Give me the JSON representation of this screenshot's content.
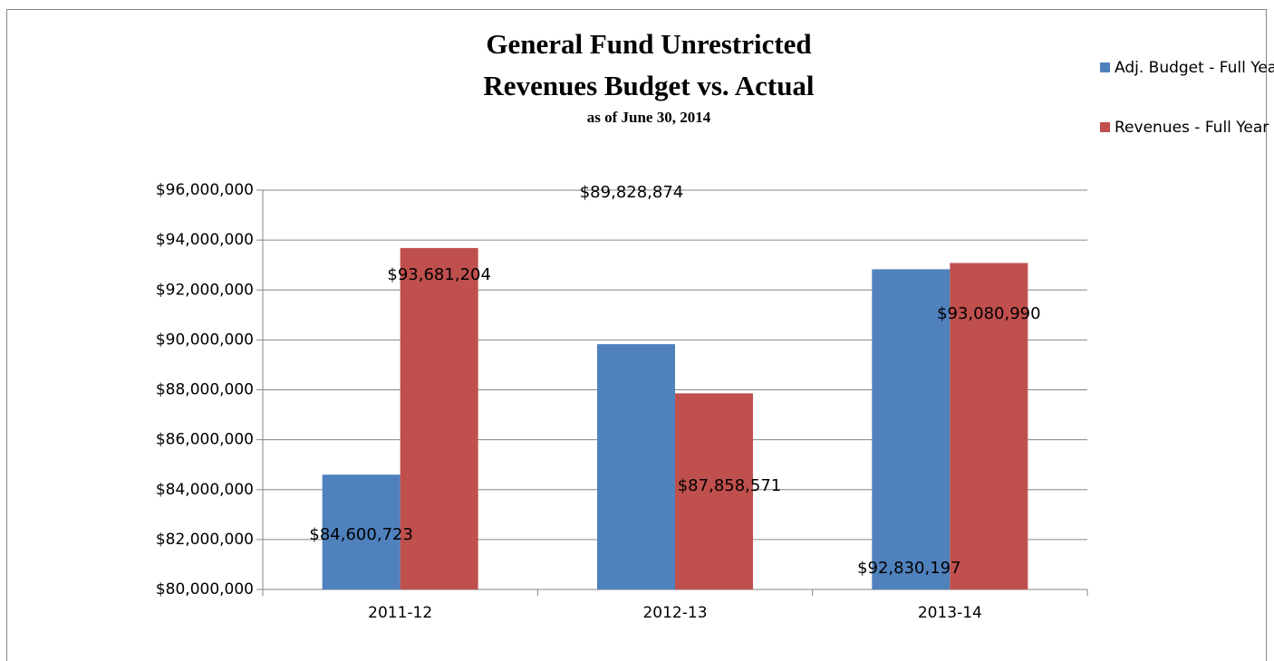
{
  "chart_data": {
    "type": "bar",
    "title": [
      "General Fund Unrestricted",
      "Revenues Budget vs. Actual"
    ],
    "subtitle": "as of June 30, 2014",
    "categories": [
      "2011-12",
      "2012-13",
      "2013-14"
    ],
    "series": [
      {
        "name": "Adj. Budget - Full Year",
        "color": "#4f81bd",
        "values": [
          84600723,
          89828874,
          92830197
        ],
        "value_labels": [
          "$84,600,723",
          "$89,828,874",
          "$92,830,197"
        ]
      },
      {
        "name": "Revenues - Full Year",
        "color": "#c0504d",
        "values": [
          93681204,
          87858571,
          93080990
        ],
        "value_labels": [
          "$93,681,204",
          "$87,858,571",
          "$93,080,990"
        ]
      }
    ],
    "ylim": [
      80000000,
      96000000
    ],
    "yticks": [
      {
        "value": 80000000,
        "label": "$80,000,000"
      },
      {
        "value": 82000000,
        "label": "$82,000,000"
      },
      {
        "value": 84000000,
        "label": "$84,000,000"
      },
      {
        "value": 86000000,
        "label": "$86,000,000"
      },
      {
        "value": 88000000,
        "label": "$88,000,000"
      },
      {
        "value": 90000000,
        "label": "$90,000,000"
      },
      {
        "value": 92000000,
        "label": "$92,000,000"
      },
      {
        "value": 94000000,
        "label": "$94,000,000"
      },
      {
        "value": 96000000,
        "label": "$96,000,000"
      }
    ],
    "grid": true,
    "legend": "top-right"
  }
}
